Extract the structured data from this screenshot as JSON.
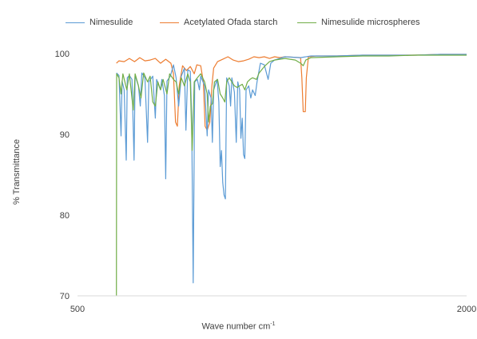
{
  "colors": {
    "nimesulide": "#5B9BD5",
    "starch": "#ED7D31",
    "microspheres": "#70AD47",
    "axis": "#000000",
    "text": "#404040"
  },
  "chart_data": {
    "type": "line",
    "xlabel_main": "Wave number cm",
    "xlabel_sup": "-1",
    "ylabel": "% Transmittance",
    "xlim": [
      500,
      2000
    ],
    "ylim": [
      70,
      100
    ],
    "x_ticks": [
      "500",
      "2000"
    ],
    "y_ticks": [
      "100",
      "90",
      "80",
      "70"
    ],
    "legend_position": "top",
    "grid": false,
    "series": [
      {
        "name": "Nimesulide",
        "color": "#5B9BD5",
        "points": [
          [
            650,
            97.6
          ],
          [
            660,
            97.3
          ],
          [
            668,
            89.8
          ],
          [
            672,
            96.6
          ],
          [
            680,
            95.5
          ],
          [
            688,
            86.8
          ],
          [
            692,
            97.0
          ],
          [
            700,
            97.3
          ],
          [
            710,
            96.8
          ],
          [
            718,
            86.8
          ],
          [
            722,
            97.3
          ],
          [
            735,
            96.0
          ],
          [
            742,
            93.5
          ],
          [
            748,
            97.6
          ],
          [
            760,
            97.0
          ],
          [
            770,
            89.0
          ],
          [
            775,
            96.5
          ],
          [
            790,
            97.2
          ],
          [
            800,
            92.0
          ],
          [
            805,
            96.8
          ],
          [
            820,
            95.5
          ],
          [
            825,
            96.8
          ],
          [
            835,
            94.8
          ],
          [
            840,
            84.5
          ],
          [
            845,
            96.6
          ],
          [
            858,
            97.2
          ],
          [
            870,
            98.6
          ],
          [
            880,
            97.0
          ],
          [
            890,
            93.5
          ],
          [
            900,
            97.2
          ],
          [
            912,
            98.2
          ],
          [
            918,
            90.5
          ],
          [
            925,
            98.0
          ],
          [
            935,
            97.8
          ],
          [
            940,
            92.0
          ],
          [
            946,
            71.6
          ],
          [
            952,
            96.5
          ],
          [
            962,
            96.8
          ],
          [
            970,
            95.5
          ],
          [
            975,
            97.2
          ],
          [
            990,
            96.0
          ],
          [
            1000,
            89.8
          ],
          [
            1005,
            95.5
          ],
          [
            1015,
            94.5
          ],
          [
            1020,
            89.0
          ],
          [
            1025,
            95.5
          ],
          [
            1038,
            96.8
          ],
          [
            1045,
            94.0
          ],
          [
            1050,
            86.0
          ],
          [
            1055,
            88.0
          ],
          [
            1060,
            84.0
          ],
          [
            1065,
            82.5
          ],
          [
            1070,
            82.0
          ],
          [
            1075,
            97.0
          ],
          [
            1085,
            96.0
          ],
          [
            1090,
            93.5
          ],
          [
            1095,
            97.0
          ],
          [
            1105,
            95.2
          ],
          [
            1112,
            89.0
          ],
          [
            1118,
            96.5
          ],
          [
            1125,
            95.5
          ],
          [
            1130,
            89.5
          ],
          [
            1135,
            92.0
          ],
          [
            1140,
            87.5
          ],
          [
            1145,
            87.0
          ],
          [
            1150,
            95.5
          ],
          [
            1160,
            96.0
          ],
          [
            1168,
            94.5
          ],
          [
            1175,
            95.5
          ],
          [
            1185,
            94.8
          ],
          [
            1192,
            96.5
          ],
          [
            1205,
            98.8
          ],
          [
            1220,
            98.6
          ],
          [
            1235,
            96.8
          ],
          [
            1245,
            98.8
          ],
          [
            1260,
            99.2
          ],
          [
            1300,
            99.6
          ],
          [
            1360,
            99.5
          ],
          [
            1400,
            99.7
          ],
          [
            1500,
            99.7
          ],
          [
            1600,
            99.8
          ],
          [
            1700,
            99.8
          ],
          [
            1800,
            99.8
          ],
          [
            1900,
            99.9
          ],
          [
            2000,
            99.9
          ]
        ]
      },
      {
        "name": "Acetylated Ofada starch",
        "color": "#ED7D31",
        "points": [
          [
            650,
            98.8
          ],
          [
            660,
            99.1
          ],
          [
            680,
            99.0
          ],
          [
            700,
            99.4
          ],
          [
            720,
            99.0
          ],
          [
            740,
            99.5
          ],
          [
            760,
            99.1
          ],
          [
            780,
            99.2
          ],
          [
            800,
            99.4
          ],
          [
            820,
            98.8
          ],
          [
            840,
            99.3
          ],
          [
            860,
            98.8
          ],
          [
            870,
            97.5
          ],
          [
            878,
            91.5
          ],
          [
            885,
            91.0
          ],
          [
            892,
            96.0
          ],
          [
            905,
            98.5
          ],
          [
            920,
            97.9
          ],
          [
            935,
            98.4
          ],
          [
            950,
            97.5
          ],
          [
            960,
            98.6
          ],
          [
            975,
            98.5
          ],
          [
            985,
            96.5
          ],
          [
            992,
            91.0
          ],
          [
            1000,
            90.5
          ],
          [
            1010,
            91.5
          ],
          [
            1018,
            96.0
          ],
          [
            1025,
            98.2
          ],
          [
            1040,
            99.0
          ],
          [
            1060,
            99.3
          ],
          [
            1080,
            99.6
          ],
          [
            1100,
            99.2
          ],
          [
            1120,
            99.0
          ],
          [
            1140,
            99.1
          ],
          [
            1160,
            99.3
          ],
          [
            1180,
            99.6
          ],
          [
            1200,
            99.5
          ],
          [
            1220,
            99.6
          ],
          [
            1240,
            99.4
          ],
          [
            1260,
            99.6
          ],
          [
            1280,
            99.5
          ],
          [
            1300,
            99.6
          ],
          [
            1360,
            99.5
          ],
          [
            1365,
            97.0
          ],
          [
            1370,
            92.8
          ],
          [
            1378,
            92.8
          ],
          [
            1382,
            97.0
          ],
          [
            1390,
            99.6
          ],
          [
            1420,
            99.7
          ],
          [
            1500,
            99.7
          ],
          [
            1600,
            99.8
          ],
          [
            1700,
            99.8
          ],
          [
            1800,
            99.8
          ],
          [
            1900,
            99.9
          ],
          [
            2000,
            99.9
          ]
        ]
      },
      {
        "name": "Nimesulide microspheres",
        "color": "#70AD47",
        "points": [
          [
            650,
            70.0
          ],
          [
            651,
            97.5
          ],
          [
            660,
            97.0
          ],
          [
            668,
            95.0
          ],
          [
            675,
            97.5
          ],
          [
            690,
            95.5
          ],
          [
            700,
            97.5
          ],
          [
            715,
            93.0
          ],
          [
            722,
            97.5
          ],
          [
            735,
            96.0
          ],
          [
            745,
            94.5
          ],
          [
            755,
            97.6
          ],
          [
            770,
            96.5
          ],
          [
            780,
            97.2
          ],
          [
            790,
            94.0
          ],
          [
            800,
            93.5
          ],
          [
            810,
            96.5
          ],
          [
            820,
            95.5
          ],
          [
            830,
            96.8
          ],
          [
            845,
            95.0
          ],
          [
            855,
            97.5
          ],
          [
            870,
            96.8
          ],
          [
            880,
            96.5
          ],
          [
            890,
            95.0
          ],
          [
            900,
            97.0
          ],
          [
            912,
            96.0
          ],
          [
            925,
            97.5
          ],
          [
            935,
            96.5
          ],
          [
            942,
            88.0
          ],
          [
            950,
            96.5
          ],
          [
            962,
            97.0
          ],
          [
            975,
            97.5
          ],
          [
            990,
            96.5
          ],
          [
            1000,
            95.0
          ],
          [
            1005,
            91.5
          ],
          [
            1012,
            93.5
          ],
          [
            1020,
            93.8
          ],
          [
            1028,
            96.5
          ],
          [
            1040,
            96.8
          ],
          [
            1050,
            95.0
          ],
          [
            1060,
            94.5
          ],
          [
            1068,
            94.0
          ],
          [
            1075,
            96.5
          ],
          [
            1085,
            97.0
          ],
          [
            1095,
            96.5
          ],
          [
            1105,
            96.0
          ],
          [
            1115,
            95.8
          ],
          [
            1125,
            96.0
          ],
          [
            1135,
            96.2
          ],
          [
            1145,
            95.5
          ],
          [
            1155,
            96.5
          ],
          [
            1165,
            96.8
          ],
          [
            1175,
            97.0
          ],
          [
            1190,
            96.8
          ],
          [
            1200,
            97.6
          ],
          [
            1220,
            98.4
          ],
          [
            1240,
            99.0
          ],
          [
            1260,
            99.2
          ],
          [
            1300,
            99.4
          ],
          [
            1340,
            99.2
          ],
          [
            1360,
            98.8
          ],
          [
            1370,
            98.5
          ],
          [
            1380,
            99.2
          ],
          [
            1400,
            99.5
          ],
          [
            1500,
            99.6
          ],
          [
            1600,
            99.7
          ],
          [
            1700,
            99.7
          ],
          [
            1800,
            99.8
          ],
          [
            1900,
            99.8
          ],
          [
            2000,
            99.8
          ]
        ]
      }
    ]
  }
}
